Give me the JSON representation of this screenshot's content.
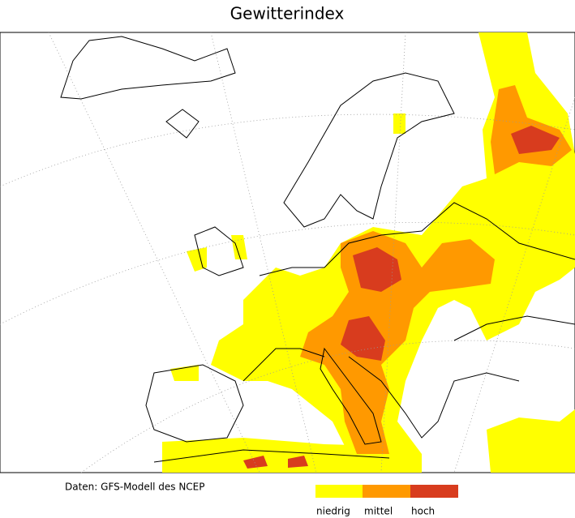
{
  "title": "Gewitterindex",
  "source": "Daten: GFS-Modell des NCEP",
  "legend": [
    {
      "label": "niedrig",
      "color": "#ffff00"
    },
    {
      "label": "mittel",
      "color": "#ff9900"
    },
    {
      "label": "hoch",
      "color": "#d83c1e"
    }
  ]
}
